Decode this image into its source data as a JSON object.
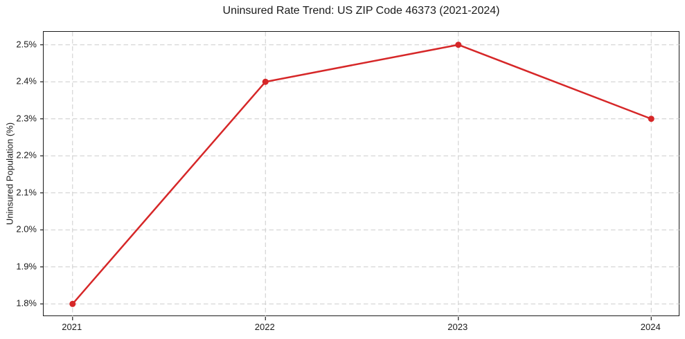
{
  "chart_data": {
    "type": "line",
    "title": "Uninsured Rate Trend: US ZIP Code 46373 (2021-2024)",
    "xlabel": "",
    "ylabel": "Uninsured Population (%)",
    "x": [
      2021,
      2022,
      2023,
      2024
    ],
    "x_tick_labels": [
      "2021",
      "2022",
      "2023",
      "2024"
    ],
    "y_ticks": [
      1.8,
      1.9,
      2.0,
      2.1,
      2.2,
      2.3,
      2.4,
      2.5
    ],
    "y_tick_labels": [
      "1.8%",
      "1.9%",
      "2.0%",
      "2.1%",
      "2.2%",
      "2.3%",
      "2.4%",
      "2.5%"
    ],
    "series": [
      {
        "name": "Uninsured Rate",
        "values": [
          1.8,
          2.4,
          2.5,
          2.3
        ]
      }
    ],
    "xlim": [
      2020.85,
      2024.15
    ],
    "ylim": [
      1.765,
      2.535
    ],
    "grid": true,
    "grid_style": "dashed",
    "legend": "none",
    "colors": {
      "line": "#d62728",
      "marker": "#d62728",
      "grid": "#cccccc",
      "spine": "#1a1a1a",
      "text": "#1a1a1a",
      "background": "#ffffff"
    },
    "style": {
      "line_width": 2.5,
      "marker_radius": 4.5,
      "tick_length": 5
    }
  }
}
